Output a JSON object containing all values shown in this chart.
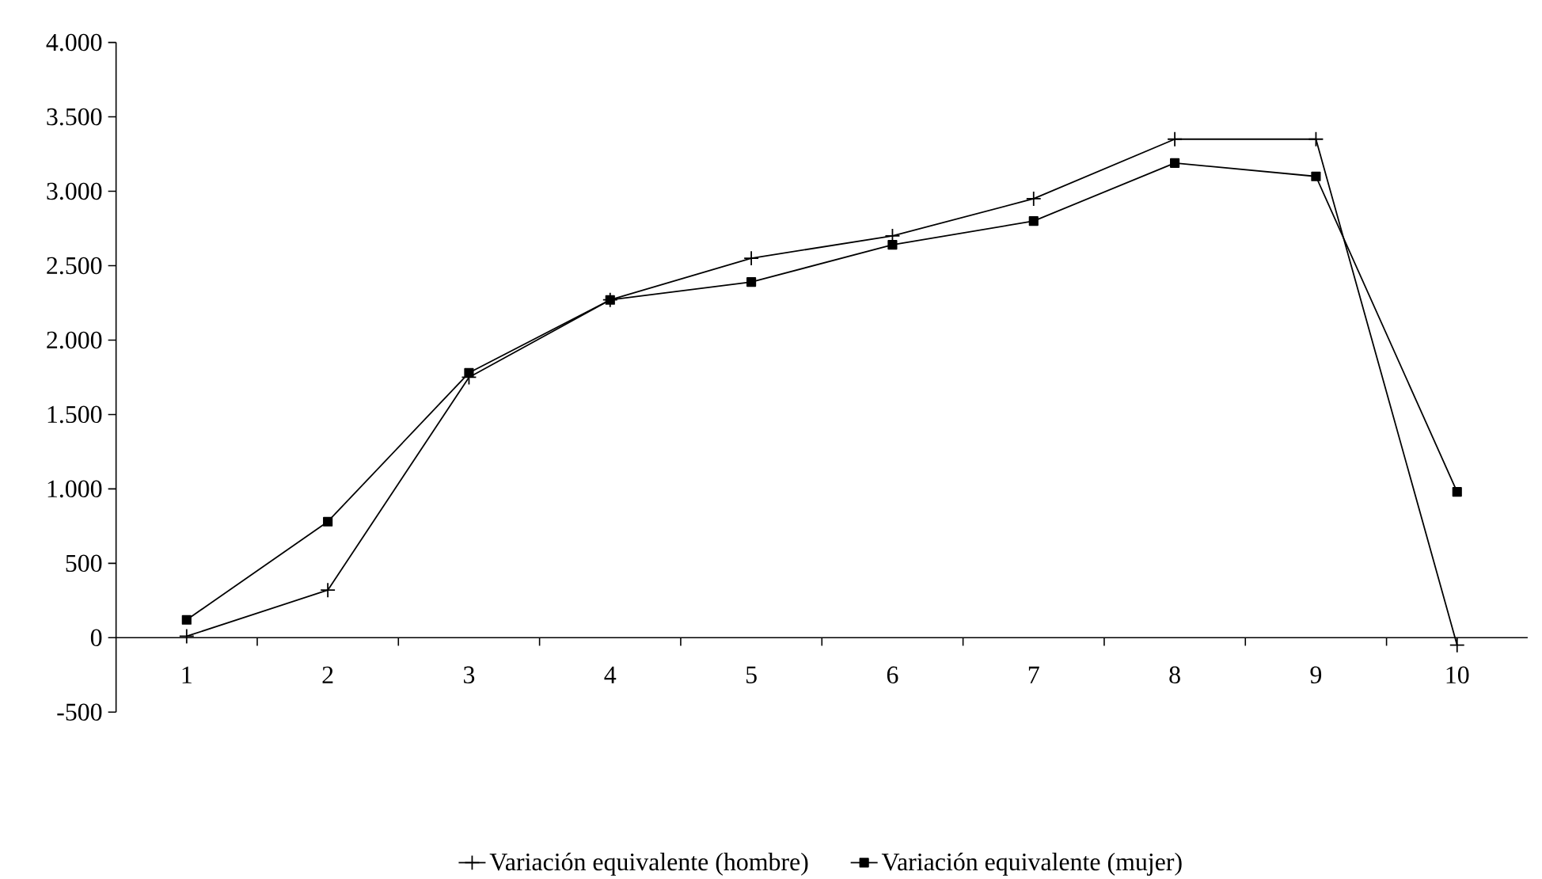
{
  "chart_data": {
    "type": "line",
    "categories": [
      "1",
      "2",
      "3",
      "4",
      "5",
      "6",
      "7",
      "8",
      "9",
      "10"
    ],
    "series": [
      {
        "name": "Variación equivalente (hombre)",
        "color": "#000000",
        "marker": "cross",
        "values": [
          10,
          320,
          1750,
          2270,
          2550,
          2700,
          2950,
          3350,
          3350,
          -50
        ]
      },
      {
        "name": "Variación equivalente (mujer)",
        "color": "#000000",
        "marker": "square",
        "values": [
          120,
          780,
          1780,
          2270,
          2390,
          2640,
          2800,
          3190,
          3100,
          980
        ]
      }
    ],
    "ylim": [
      -500,
      4000
    ],
    "yticks": [
      {
        "value": -500,
        "label": "-500"
      },
      {
        "value": 0,
        "label": "0"
      },
      {
        "value": 500,
        "label": "500"
      },
      {
        "value": 1000,
        "label": "1.000"
      },
      {
        "value": 1500,
        "label": "1.500"
      },
      {
        "value": 2000,
        "label": "2.000"
      },
      {
        "value": 2500,
        "label": "2.500"
      },
      {
        "value": 3000,
        "label": "3.000"
      },
      {
        "value": 3500,
        "label": "3.500"
      },
      {
        "value": 4000,
        "label": "4.000"
      }
    ],
    "legend": "bottom",
    "line_style": "solid"
  }
}
